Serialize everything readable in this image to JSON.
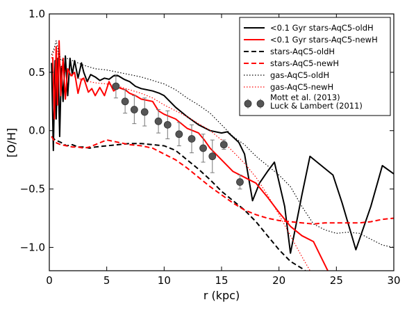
{
  "chart_data": {
    "type": "line",
    "xlabel": "r (kpc)",
    "ylabel": "[O/H]",
    "xlim": [
      0,
      30
    ],
    "ylim": [
      -1.2,
      1.0
    ],
    "xticks": [
      0,
      5,
      10,
      15,
      20,
      25,
      30
    ],
    "yticks": [
      1.0,
      0.5,
      0.0,
      -0.5,
      -1.0
    ],
    "xtick_labels": [
      "0",
      "5",
      "10",
      "15",
      "20",
      "25",
      "30"
    ],
    "ytick_labels": [
      "1.0",
      "0.5",
      "0.0",
      "−0.5",
      "−1.0"
    ],
    "grid": false,
    "legend_position": "top-right",
    "series": [
      {
        "name": "<0.1 Gyr stars-AqC5-oldH",
        "color": "#000000",
        "style": "solid",
        "width": 2,
        "x": [
          0.2,
          0.35,
          0.5,
          0.6,
          0.75,
          0.9,
          1.05,
          1.2,
          1.4,
          1.6,
          1.8,
          2.0,
          2.2,
          2.5,
          2.8,
          3.0,
          3.3,
          3.6,
          4.0,
          4.4,
          4.8,
          5.2,
          5.6,
          6.0,
          6.5,
          7.0,
          7.5,
          8.0,
          9.0,
          9.6,
          10.0,
          11.0,
          12.0,
          13.0,
          14.0,
          15.0,
          15.5,
          16.5,
          17.0,
          17.7,
          18.3,
          19.0,
          19.6,
          20.5,
          21.0,
          22.0,
          22.7,
          24.7,
          25.5,
          26.7,
          28.0,
          29.0,
          30.0
        ],
        "y": [
          0.58,
          -0.17,
          0.6,
          0.1,
          0.62,
          -0.05,
          0.55,
          0.25,
          0.64,
          0.3,
          0.62,
          0.48,
          0.6,
          0.45,
          0.58,
          0.5,
          0.42,
          0.48,
          0.46,
          0.43,
          0.45,
          0.44,
          0.47,
          0.47,
          0.44,
          0.42,
          0.38,
          0.36,
          0.34,
          0.32,
          0.3,
          0.2,
          0.12,
          0.05,
          0.0,
          -0.02,
          -0.01,
          -0.1,
          -0.2,
          -0.6,
          -0.45,
          -0.35,
          -0.27,
          -0.65,
          -1.05,
          -0.55,
          -0.22,
          -0.38,
          -0.62,
          -1.02,
          -0.65,
          -0.3,
          -0.37
        ]
      },
      {
        "name": "<0.1 Gyr stars-AqC5-newH",
        "color": "#ff0000",
        "style": "solid",
        "width": 2,
        "x": [
          0.3,
          0.45,
          0.6,
          0.7,
          0.85,
          1.0,
          1.2,
          1.4,
          1.6,
          1.9,
          2.2,
          2.5,
          2.8,
          3.0,
          3.4,
          3.7,
          4.0,
          4.4,
          4.8,
          5.2,
          5.6,
          6.0,
          6.6,
          7.0,
          7.5,
          8.0,
          9.0,
          9.5,
          10.0,
          11.0,
          12.0,
          13.0,
          13.5,
          14.0,
          15.0,
          16.0,
          17.0,
          18.0,
          19.0,
          20.0,
          21.0,
          22.0,
          23.0,
          23.5,
          24.0,
          24.5
        ],
        "y": [
          0.63,
          0.1,
          0.72,
          0.22,
          0.77,
          0.3,
          0.62,
          0.27,
          0.53,
          0.47,
          0.5,
          0.32,
          0.44,
          0.45,
          0.33,
          0.36,
          0.3,
          0.37,
          0.3,
          0.42,
          0.34,
          0.37,
          0.35,
          0.32,
          0.3,
          0.27,
          0.25,
          0.17,
          0.14,
          0.1,
          0.02,
          -0.02,
          -0.08,
          -0.15,
          -0.25,
          -0.35,
          -0.4,
          -0.45,
          -0.57,
          -0.7,
          -0.82,
          -0.9,
          -0.95,
          -1.05,
          -1.15,
          -1.25
        ]
      },
      {
        "name": "stars-AqC5-oldH",
        "color": "#000000",
        "style": "dashed",
        "width": 2,
        "x": [
          0.2,
          0.5,
          1.0,
          1.5,
          2.0,
          2.5,
          3.0,
          3.5,
          4.0,
          5.0,
          6.0,
          7.0,
          8.0,
          9.0,
          10.0,
          11.0,
          12.0,
          13.0,
          14.0,
          15.0,
          16.0,
          17.0,
          18.0,
          19.0,
          20.0,
          21.0,
          22.0,
          23.0
        ],
        "y": [
          -0.05,
          -0.08,
          -0.1,
          -0.13,
          -0.12,
          -0.14,
          -0.14,
          -0.15,
          -0.14,
          -0.13,
          -0.12,
          -0.11,
          -0.11,
          -0.12,
          -0.13,
          -0.17,
          -0.25,
          -0.33,
          -0.42,
          -0.52,
          -0.6,
          -0.68,
          -0.78,
          -0.9,
          -1.02,
          -1.12,
          -1.18,
          -1.25
        ]
      },
      {
        "name": "stars-AqC5-newH",
        "color": "#ff0000",
        "style": "dashed",
        "width": 2,
        "x": [
          0.2,
          0.5,
          1.0,
          1.5,
          2.0,
          2.5,
          3.0,
          3.5,
          4.0,
          4.5,
          5.0,
          6.0,
          7.0,
          8.0,
          9.0,
          10.0,
          11.0,
          12.0,
          13.0,
          14.0,
          15.0,
          16.0,
          17.0,
          18.0,
          19.0,
          20.0,
          21.0,
          22.0,
          23.0,
          24.0,
          25.0,
          26.0,
          27.0,
          28.0,
          29.0,
          30.0
        ],
        "y": [
          -0.05,
          -0.1,
          -0.12,
          -0.13,
          -0.14,
          -0.14,
          -0.15,
          -0.14,
          -0.12,
          -0.1,
          -0.08,
          -0.1,
          -0.12,
          -0.13,
          -0.15,
          -0.2,
          -0.25,
          -0.32,
          -0.4,
          -0.48,
          -0.55,
          -0.62,
          -0.68,
          -0.72,
          -0.75,
          -0.77,
          -0.78,
          -0.79,
          -0.8,
          -0.79,
          -0.79,
          -0.79,
          -0.79,
          -0.78,
          -0.76,
          -0.75
        ]
      },
      {
        "name": "gas-AqC5-oldH",
        "color": "#000000",
        "style": "dotted",
        "width": 1.2,
        "x": [
          0.2,
          0.4,
          0.6,
          1.0,
          1.5,
          2.0,
          3.0,
          4.0,
          5.0,
          6.0,
          7.0,
          8.0,
          9.0,
          10.0,
          11.0,
          12.0,
          13.0,
          14.0,
          15.0,
          16.0,
          17.0,
          18.0,
          19.0,
          20.0,
          21.0,
          22.0,
          23.0,
          24.0,
          25.0,
          26.0,
          27.0,
          28.0,
          29.0,
          30.0
        ],
        "y": [
          0.65,
          0.7,
          0.77,
          0.6,
          0.62,
          0.6,
          0.56,
          0.53,
          0.52,
          0.5,
          0.48,
          0.46,
          0.43,
          0.4,
          0.35,
          0.28,
          0.22,
          0.15,
          0.05,
          -0.05,
          -0.12,
          -0.22,
          -0.3,
          -0.38,
          -0.48,
          -0.65,
          -0.8,
          -0.85,
          -0.88,
          -0.87,
          -0.88,
          -0.93,
          -0.98,
          -1.0
        ]
      },
      {
        "name": "gas-AqC5-newH",
        "color": "#ff0000",
        "style": "dotted",
        "width": 1.2,
        "x": [
          0.2,
          0.4,
          0.6,
          1.0,
          1.5,
          2.0,
          3.0,
          4.0,
          5.0,
          6.0,
          7.0,
          8.0,
          9.0,
          10.0,
          11.0,
          12.0,
          13.0,
          14.0,
          15.0,
          16.0,
          17.0,
          18.0,
          19.0,
          20.0,
          21.0,
          22.0,
          23.0
        ],
        "y": [
          0.62,
          0.68,
          0.72,
          0.55,
          0.5,
          0.47,
          0.43,
          0.41,
          0.4,
          0.38,
          0.35,
          0.32,
          0.28,
          0.22,
          0.17,
          0.12,
          0.06,
          0.0,
          -0.08,
          -0.18,
          -0.28,
          -0.4,
          -0.55,
          -0.72,
          -0.9,
          -1.08,
          -1.25
        ]
      }
    ],
    "observations": {
      "name": "Mott et al. (2013)\nLuck & Lambert (2011)",
      "label_lines": [
        "Mott et al. (2013)",
        "Luck & Lambert (2011)"
      ],
      "marker_color": "#555555",
      "x": [
        5.8,
        6.6,
        7.4,
        8.3,
        9.5,
        10.3,
        11.3,
        12.4,
        13.4,
        14.2,
        15.2,
        16.6
      ],
      "y": [
        0.38,
        0.25,
        0.18,
        0.16,
        0.08,
        0.05,
        -0.03,
        -0.07,
        -0.15,
        -0.22,
        -0.12,
        -0.44
      ],
      "yerr": [
        0.1,
        0.1,
        0.12,
        0.12,
        0.1,
        0.12,
        0.1,
        0.12,
        0.12,
        0.14,
        0.04,
        0.06
      ]
    }
  }
}
